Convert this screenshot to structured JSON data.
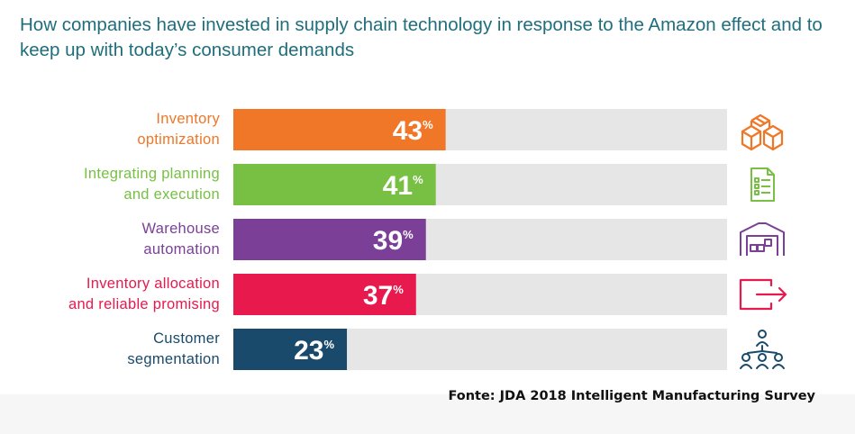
{
  "title": "How companies have invested in supply chain technology in response to the Amazon effect and to keep up with today’s consumer demands",
  "source": "Fonte: JDA 2018 Intelligent Manufacturing Survey",
  "colors": {
    "title": "#1f6e7c",
    "track": "#e6e6e6"
  },
  "chart_data": {
    "type": "bar",
    "orientation": "horizontal",
    "title": "How companies have invested in supply chain technology in response to the Amazon effect and to keep up with today’s consumer demands",
    "xlabel": "",
    "ylabel": "",
    "xlim": [
      0,
      100
    ],
    "unit": "%",
    "categories": [
      {
        "lines": [
          "Inventory",
          "optimization"
        ],
        "value": 43,
        "color": "#f07628",
        "icon": "boxes-icon"
      },
      {
        "lines": [
          "Integrating planning",
          "and execution"
        ],
        "value": 41,
        "color": "#77c043",
        "icon": "checklist-document-icon"
      },
      {
        "lines": [
          "Warehouse",
          "automation"
        ],
        "value": 39,
        "color": "#7b3f98",
        "icon": "warehouse-icon"
      },
      {
        "lines": [
          "Inventory allocation",
          "and reliable promising"
        ],
        "value": 37,
        "color": "#e8194d",
        "icon": "export-arrow-icon"
      },
      {
        "lines": [
          "Customer",
          "segmentation"
        ],
        "value": 23,
        "color": "#1a4a6b",
        "icon": "org-network-icon"
      }
    ],
    "values": [
      43,
      41,
      39,
      37,
      23
    ],
    "value_suffix": "%"
  }
}
